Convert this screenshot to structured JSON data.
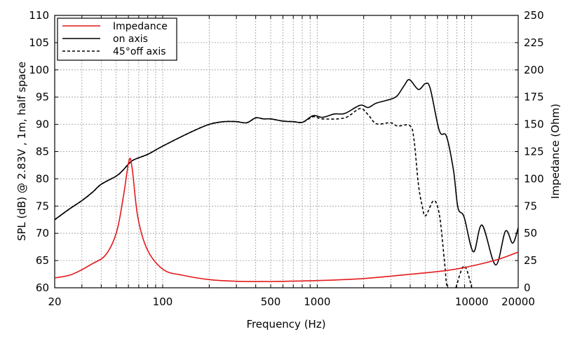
{
  "chart_data": {
    "type": "line",
    "xlabel": "Frequency (Hz)",
    "ylabel": "SPL (dB) @ 2.83V , 1m, half space",
    "y2label": "Impedance (Ohm)",
    "xscale": "log",
    "xlim": [
      20,
      20000
    ],
    "ylim": [
      60,
      110
    ],
    "y2lim": [
      0,
      250
    ],
    "xticks": [
      "20",
      "100",
      "500",
      "1000",
      "10000",
      "20000"
    ],
    "yticks": [
      "60",
      "65",
      "70",
      "75",
      "80",
      "85",
      "90",
      "95",
      "100",
      "105",
      "110"
    ],
    "y2ticks": [
      "0",
      "25",
      "50",
      "75",
      "100",
      "125",
      "150",
      "175",
      "200",
      "225",
      "250"
    ],
    "grid": true,
    "legend_position": "top-left",
    "series": [
      {
        "name": "Impedance",
        "axis": "right",
        "color": "#e3191c",
        "style": "solid",
        "x": [
          20,
          26,
          35,
          43,
          50.5,
          56,
          60.6,
          63.4,
          69,
          79.5,
          101,
          134,
          200,
          300,
          500,
          1000,
          2000,
          4000,
          7000,
          10000,
          15000,
          20000
        ],
        "y": [
          9,
          12.4,
          22,
          30.6,
          52,
          86,
          117,
          110,
          65,
          35,
          16.7,
          11.6,
          7.5,
          6,
          5.8,
          6.6,
          8.5,
          12.4,
          16,
          20,
          26.3,
          32.8
        ]
      },
      {
        "name": "on axis",
        "axis": "left",
        "color": "#000000",
        "style": "solid",
        "x": [
          20,
          25,
          30,
          35,
          40,
          50,
          55,
          60,
          65,
          80,
          100,
          150,
          200,
          250,
          300,
          350,
          400,
          450,
          500,
          600,
          700,
          806,
          942,
          1084,
          1290,
          1510,
          1892,
          2140,
          2416,
          2980,
          3306,
          3670,
          3963,
          4520,
          5024,
          5400,
          6180,
          6870,
          7620,
          8150,
          8930,
          10260,
          11670,
          14280,
          16540,
          18420,
          20000
        ],
        "y": [
          72.5,
          74.5,
          76,
          77.5,
          79,
          80.5,
          81.5,
          82.7,
          83.5,
          84.5,
          86,
          88.5,
          90,
          90.5,
          90.5,
          90.3,
          91.2,
          91,
          91,
          90.6,
          90.5,
          90.4,
          91.6,
          91.3,
          91.9,
          92,
          93.5,
          93.1,
          93.9,
          94.6,
          95.3,
          97.2,
          98.2,
          96.4,
          97.5,
          96.5,
          88.8,
          87.8,
          81.6,
          74.7,
          73,
          66.6,
          71.5,
          64.2,
          70.4,
          68.2,
          71
        ]
      },
      {
        "name": "45°off axis",
        "axis": "left",
        "color": "#000000",
        "style": "dashed",
        "x": [
          20,
          25,
          30,
          35,
          40,
          50,
          55,
          60,
          65,
          80,
          100,
          150,
          200,
          250,
          300,
          350,
          400,
          450,
          500,
          600,
          700,
          806,
          942,
          1084,
          1510,
          1892,
          2140,
          2416,
          2980,
          3306,
          3963,
          4220,
          4520,
          4770,
          5024,
          5680,
          6180,
          6640,
          6920,
          7300,
          7900,
          8930,
          10000,
          10300
        ],
        "y": [
          72.5,
          74.5,
          76,
          77.5,
          79,
          80.5,
          81.5,
          82.7,
          83.5,
          84.5,
          86,
          88.5,
          90,
          90.5,
          90.5,
          90.3,
          91.2,
          91,
          91,
          90.6,
          90.5,
          90.4,
          91.4,
          91,
          91.2,
          92.9,
          91.75,
          90.1,
          90.3,
          89.7,
          89.8,
          87.5,
          79,
          75.2,
          73.2,
          76,
          73.4,
          65.3,
          60,
          57,
          60,
          64,
          60,
          57
        ]
      }
    ]
  }
}
